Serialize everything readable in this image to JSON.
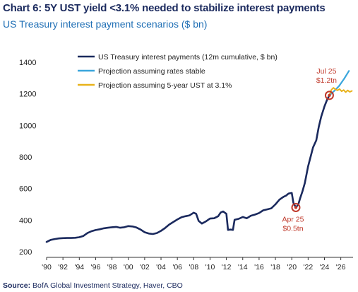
{
  "header": {
    "title": "Chart 6: 5Y UST yield <3.1% needed to stabilize interest payments",
    "subtitle": "US Treasury interest payment scenarios ($ bn)"
  },
  "footer": {
    "source_label": "Source:",
    "source_text": " BofA Global Investment Strategy, Haver, CBO"
  },
  "chart_data": {
    "type": "line",
    "title": "Chart 6: 5Y UST yield <3.1% needed to stabilize interest payments",
    "subtitle": "US Treasury interest payment scenarios ($ bn)",
    "xlim": [
      1990,
      2027.5
    ],
    "ylim": [
      200,
      1400
    ],
    "yticks": [
      200,
      400,
      600,
      800,
      1000,
      1200,
      1400
    ],
    "xtick_labels": [
      "'90",
      "'92",
      "'94",
      "'96",
      "'98",
      "'00",
      "'02",
      "'04",
      "'06",
      "'08",
      "'10",
      "'12",
      "'14",
      "'16",
      "'18",
      "'20",
      "'22",
      "'24",
      "'26"
    ],
    "grid": false,
    "legend_position": "top-left",
    "colors": {
      "history": "#1b2a5e",
      "stable": "#3aa6dc",
      "uniform": "#e8b21a",
      "marker": "#c0392b",
      "annotation": "#c0392b",
      "axis": "#333333"
    },
    "series": [
      {
        "name": "US Treasury interest payments (12m cumulative, $ bn)",
        "x": [
          1990,
          1990.5,
          1991,
          1991.5,
          1992,
          1992.5,
          1993,
          1993.5,
          1994,
          1994.5,
          1995,
          1995.5,
          1996,
          1996.5,
          1997,
          1997.5,
          1998,
          1998.5,
          1999,
          1999.5,
          2000,
          2000.5,
          2001,
          2001.5,
          2002,
          2002.5,
          2003,
          2003.5,
          2004,
          2004.5,
          2005,
          2005.5,
          2006,
          2006.5,
          2007,
          2007.5,
          2008,
          2008.3,
          2008.6,
          2009,
          2009.5,
          2010,
          2010.5,
          2011,
          2011.3,
          2011.6,
          2012,
          2012.2,
          2012.5,
          2012.8,
          2013,
          2013.5,
          2014,
          2014.5,
          2015,
          2015.5,
          2016,
          2016.5,
          2017,
          2017.5,
          2018,
          2018.5,
          2019,
          2019.3,
          2019.6,
          2020,
          2020.2,
          2020.5,
          2020.8,
          2021,
          2021.3,
          2021.6,
          2022,
          2022.3,
          2022.6,
          2023,
          2023.3,
          2023.6,
          2024,
          2024.3,
          2024.6
        ],
        "y": [
          262,
          275,
          280,
          284,
          286,
          287,
          287,
          288,
          292,
          300,
          318,
          330,
          337,
          342,
          348,
          352,
          355,
          357,
          352,
          355,
          362,
          360,
          353,
          340,
          323,
          315,
          312,
          318,
          332,
          350,
          372,
          388,
          404,
          418,
          425,
          430,
          447,
          440,
          395,
          378,
          392,
          410,
          412,
          425,
          448,
          455,
          440,
          338,
          340,
          338,
          402,
          408,
          420,
          412,
          428,
          435,
          445,
          462,
          468,
          475,
          500,
          530,
          548,
          555,
          568,
          572,
          510,
          480,
          500,
          535,
          580,
          635,
          740,
          800,
          860,
          905,
          990,
          1055,
          1120,
          1160,
          1190
        ]
      },
      {
        "name": "Projection assuming rates stable",
        "x": [
          2024.6,
          2025.2,
          2025.8,
          2026.4,
          2027.0
        ],
        "y": [
          1190,
          1218,
          1250,
          1295,
          1345
        ]
      },
      {
        "name": "Projection assuming 5-year UST at 3.1%",
        "x": [
          2024.6,
          2024.85,
          2025.1,
          2025.35,
          2025.6,
          2025.85,
          2026.1,
          2026.35,
          2026.6,
          2026.85,
          2027.1,
          2027.35
        ],
        "y": [
          1190,
          1225,
          1238,
          1228,
          1222,
          1230,
          1216,
          1224,
          1210,
          1222,
          1212,
          1218
        ]
      }
    ],
    "annotations": [
      {
        "x": 2020.5,
        "y": 480,
        "line1": "Apr 25",
        "line2": "$0.5tn",
        "position": "below"
      },
      {
        "x": 2024.6,
        "y": 1190,
        "line1": "Jul 25",
        "line2": "$1.2tn",
        "position": "above"
      }
    ]
  }
}
